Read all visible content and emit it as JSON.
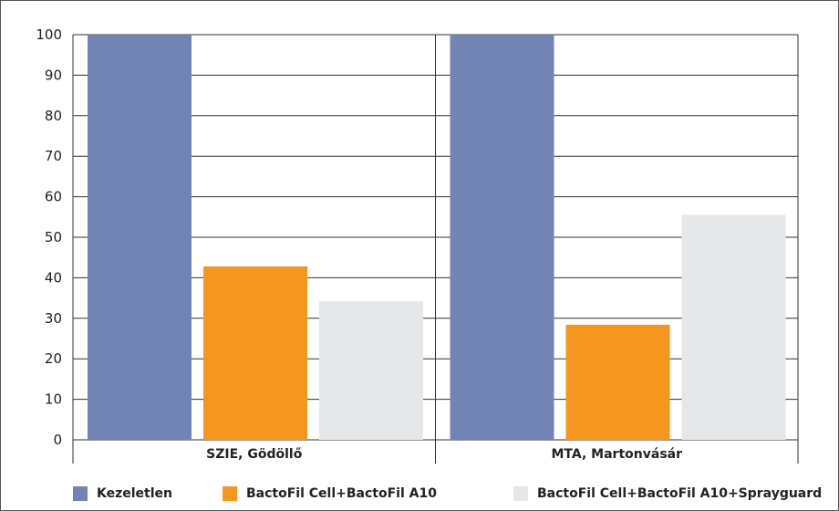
{
  "chart_data": {
    "type": "bar",
    "title": "",
    "xlabel": "",
    "ylabel": "",
    "categories": [
      "SZIE, Gödöllő",
      "MTA, Martonvásár"
    ],
    "series": [
      {
        "name": "Kezeletlen",
        "values": [
          100,
          100
        ],
        "color": "#7184b4"
      },
      {
        "name": "BactoFil Cell+BactoFil A10",
        "values": [
          42.8,
          28.4
        ],
        "color": "#f5961e"
      },
      {
        "name": "BactoFil Cell+BactoFil A10+Sprayguard",
        "values": [
          34.2,
          55.5
        ],
        "color": "#e6e7e9"
      }
    ],
    "ylim": [
      0,
      100
    ],
    "yticks": [
      0,
      10,
      20,
      30,
      40,
      50,
      60,
      70,
      80,
      90,
      100
    ],
    "grid": true,
    "legend_position": "bottom"
  }
}
